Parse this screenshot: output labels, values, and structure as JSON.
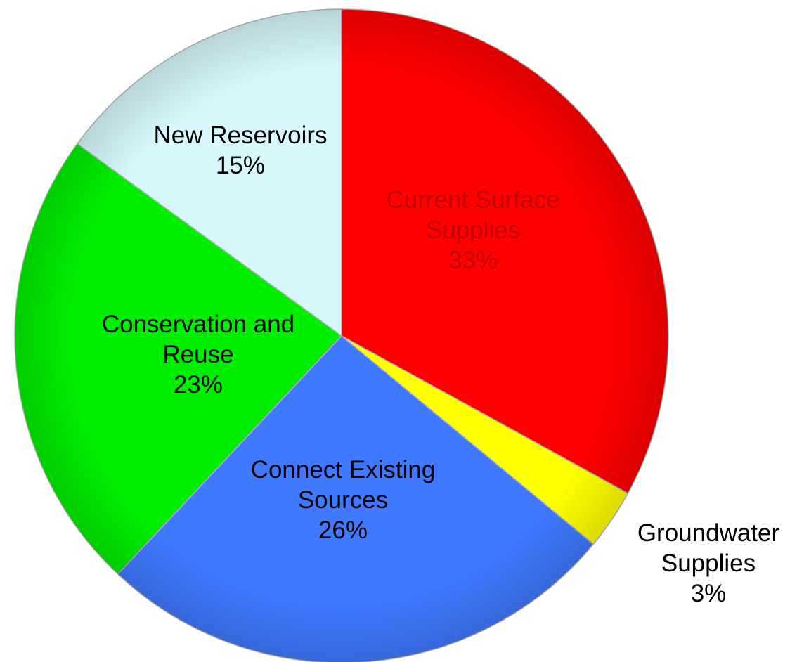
{
  "chart_data": {
    "type": "pie",
    "title": "",
    "start_angle_deg": 0,
    "direction": "clockwise",
    "slices": [
      {
        "label_lines": [
          "Current Surface",
          "Supplies"
        ],
        "pct_label": "33%",
        "value": 33,
        "color": "#ff0000",
        "text_color": "#c00000"
      },
      {
        "label_lines": [
          "Groundwater",
          "Supplies"
        ],
        "pct_label": "3%",
        "value": 3,
        "color": "#ffff00",
        "text_color": "#000000"
      },
      {
        "label_lines": [
          "Connect Existing",
          "Sources"
        ],
        "pct_label": "26%",
        "value": 26,
        "color": "#3f79ff",
        "text_color": "#000000"
      },
      {
        "label_lines": [
          "Conservation and",
          "Reuse"
        ],
        "pct_label": "23%",
        "value": 23,
        "color": "#00ee00",
        "text_color": "#000000"
      },
      {
        "label_lines": [
          "New Reservoirs"
        ],
        "pct_label": "15%",
        "value": 15,
        "color": "#d6f7fc",
        "text_color": "#000000"
      }
    ]
  }
}
